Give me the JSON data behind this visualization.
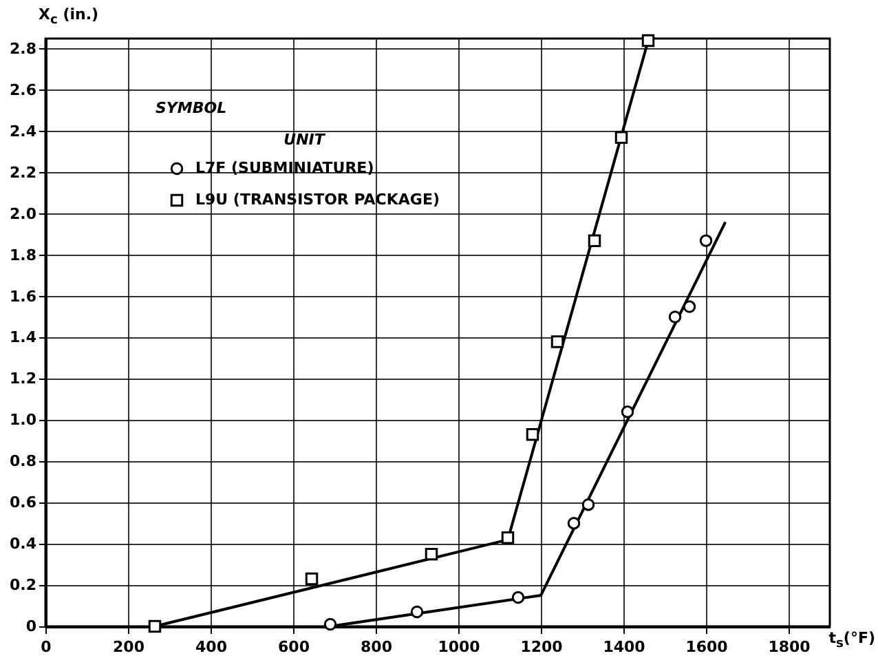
{
  "chart_data": {
    "type": "scatter",
    "xlabel": "t$_{s}$(°F)",
    "ylabel": "X$_{c}$ (in.)",
    "legend_title": "UNIT",
    "annotations": [
      "SYMBOL"
    ],
    "xlim": [
      0,
      1900
    ],
    "xticks": [
      0,
      200,
      400,
      600,
      800,
      1000,
      1200,
      1400,
      1600,
      1800
    ],
    "ylim": [
      0,
      2.85
    ],
    "yticks": [
      0,
      0.2,
      0.4,
      0.6,
      0.8,
      {
        "value": 1,
        "label": "1.0"
      },
      1.2,
      1.4,
      1.6,
      1.8,
      {
        "value": 2,
        "label": "2.0"
      },
      2.2,
      2.4,
      2.6,
      2.8
    ],
    "grid": true,
    "legend": "top left",
    "series": [
      {
        "name": "L7F (SUBMINIATURE)",
        "color": "#000000",
        "marker": "circle",
        "x": [
          690,
          900,
          1145,
          1280,
          1315,
          1410,
          1525,
          1560,
          1600
        ],
        "values": [
          0.01,
          0.07,
          0.14,
          0.5,
          0.59,
          1.04,
          1.5,
          1.55,
          1.87
        ]
      },
      {
        "name": "L9U (TRANSISTOR PACKAGE)",
        "color": "#000000",
        "marker": "square",
        "x": [
          265,
          645,
          935,
          1120,
          1180,
          1240,
          1330,
          1395,
          1460
        ],
        "values": [
          0,
          0.23,
          0.35,
          0.43,
          0.93,
          1.38,
          1.87,
          2.37,
          2.84
        ]
      },
      {
        "type": "line",
        "color": "#000000",
        "marker": "none",
        "x": [
          690,
          1200,
          1647
        ],
        "values": [
          0,
          0.15,
          1.96
        ]
      },
      {
        "type": "line",
        "color": "#000000",
        "marker": "none",
        "x": [
          265,
          1120,
          1460
        ],
        "values": [
          0,
          0.42,
          2.84
        ]
      }
    ]
  }
}
